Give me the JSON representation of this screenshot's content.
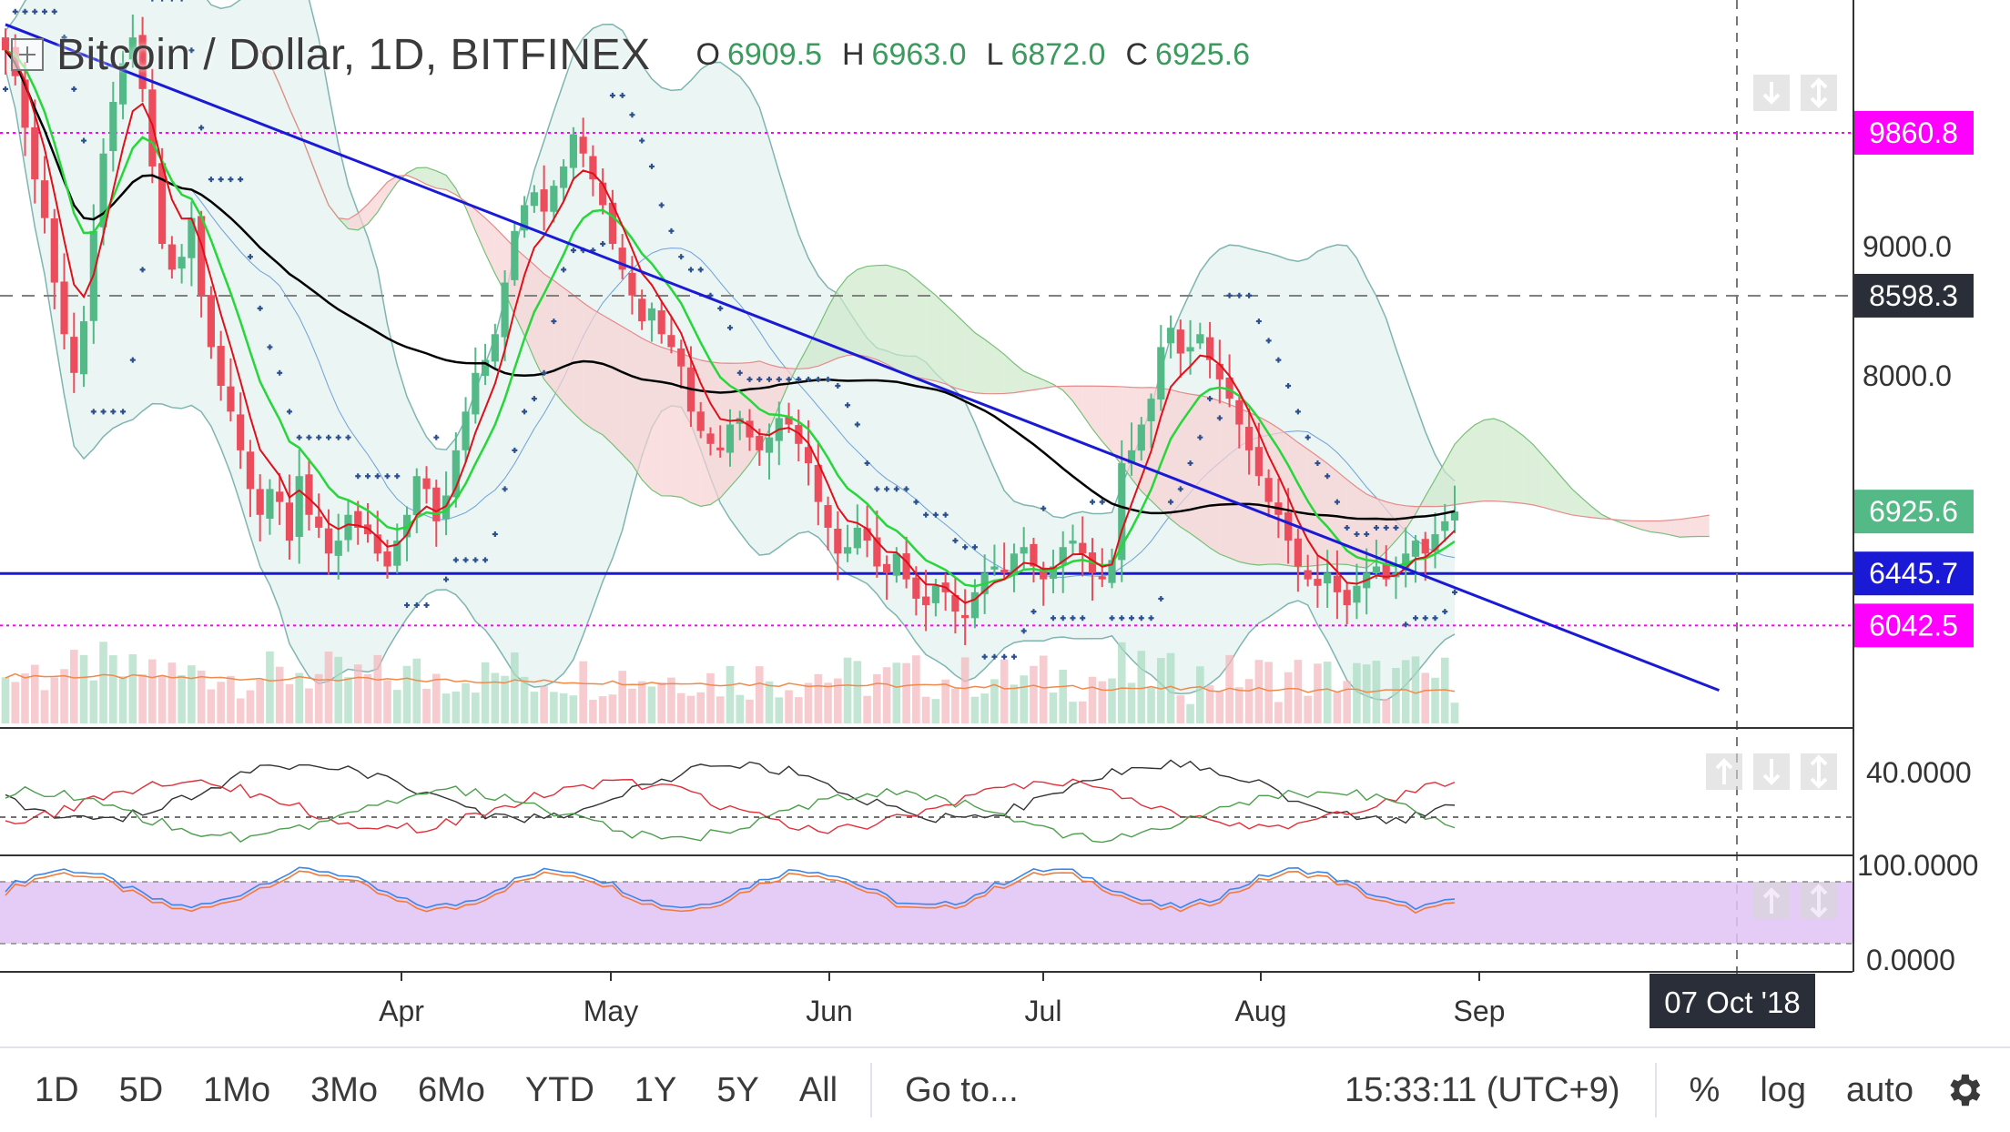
{
  "header": {
    "symbol_title": "Bitcoin / Dollar, 1D, BITFINEX",
    "open_label": "O",
    "open": "6909.5",
    "high_label": "H",
    "high": "6963.0",
    "low_label": "L",
    "low": "6872.0",
    "close_label": "C",
    "close": "6925.6"
  },
  "toolbar": {
    "ranges": [
      "1D",
      "5D",
      "1Mo",
      "3Mo",
      "6Mo",
      "YTD",
      "1Y",
      "5Y",
      "All"
    ],
    "goto": "Go to...",
    "clock": "15:33:11 (UTC+9)",
    "percent": "%",
    "log": "log",
    "auto": "auto"
  },
  "colors": {
    "up": "#53b987",
    "down": "#eb4d5c",
    "trendline": "#1a1ad6",
    "pink": "#ff00ff",
    "sma_black": "#000000",
    "ema_green": "#27d63b",
    "ema_red": "#e0101a",
    "bb_fill": "#e3f1f0",
    "stoch_band": "#e0c3f5",
    "dark_label": "#2a2e39"
  },
  "chart_data": {
    "type": "candlestick",
    "title": "Bitcoin / Dollar, 1D, BITFINEX",
    "x_tick_labels": [
      "Apr",
      "May",
      "Jun",
      "Jul",
      "Aug",
      "Sep"
    ],
    "crosshair_date": "07 Oct '18",
    "y_ticks": [
      "9000.0",
      "8000.0"
    ],
    "y_range": [
      5600,
      10650
    ],
    "price_labels": [
      {
        "value": 9860.8,
        "text": "9860.8",
        "color": "#ff00ff"
      },
      {
        "value": 8598.3,
        "text": "8598.3",
        "color": "#2a2e39"
      },
      {
        "value": 6925.6,
        "text": "6925.6",
        "color": "#53b987"
      },
      {
        "value": 6445.7,
        "text": "6445.7",
        "color": "#1a1ad6"
      },
      {
        "value": 6042.5,
        "text": "6042.5",
        "color": "#ff00ff"
      }
    ],
    "horizontal_levels": [
      {
        "value": 9860.8,
        "style": "dotted",
        "color": "#ff00ff"
      },
      {
        "value": 8598.3,
        "style": "dashed",
        "color": "#808080"
      },
      {
        "value": 6445.7,
        "style": "solid",
        "color": "#1a1ad6"
      },
      {
        "value": 6042.5,
        "style": "dotted",
        "color": "#ff00ff"
      }
    ],
    "close_series_approx": [
      10500,
      10300,
      9900,
      9500,
      9200,
      8700,
      8300,
      8000,
      8400,
      9100,
      9700,
      10100,
      10400,
      10600,
      10200,
      9600,
      9000,
      8800,
      8900,
      9200,
      8600,
      8200,
      7900,
      7700,
      7400,
      7100,
      6900,
      7100,
      7000,
      6700,
      7200,
      6900,
      6800,
      6600,
      6700,
      6900,
      6800,
      6750,
      6600,
      6500,
      6700,
      6900,
      7200,
      7100,
      6850,
      7050,
      7400,
      7700,
      8000,
      8100,
      8300,
      8700,
      9100,
      9300,
      9400,
      9250,
      9450,
      9600,
      9850,
      9700,
      9500,
      9300,
      9000,
      8800,
      8600,
      8400,
      8500,
      8300,
      8200,
      8050,
      7700,
      7550,
      7450,
      7400,
      7600,
      7650,
      7500,
      7400,
      7500,
      7650,
      7600,
      7450,
      7300,
      7000,
      6800,
      6600,
      6650,
      6800,
      6700,
      6500,
      6450,
      6600,
      6400,
      6250,
      6200,
      6350,
      6300,
      6150,
      6100,
      6300,
      6450,
      6500,
      6450,
      6600,
      6650,
      6500,
      6400,
      6500,
      6650,
      6700,
      6600,
      6450,
      6400,
      6550,
      7300,
      7400,
      7600,
      7800,
      8200,
      8350,
      8150,
      8200,
      8300,
      8100,
      7950,
      7800,
      7600,
      7400,
      7200,
      7000,
      6900,
      6700,
      6500,
      6400,
      6350,
      6450,
      6300,
      6200,
      6350,
      6450,
      6500,
      6400,
      6450,
      6600,
      6700,
      6600,
      6750,
      6850,
      6925.6
    ],
    "trendline": {
      "from": [
        0,
        10700
      ],
      "to": [
        175,
        5540
      ]
    },
    "panel2_ticks": [
      "40.0000"
    ],
    "panel3_ticks": [
      "100.0000",
      "0.0000"
    ]
  }
}
